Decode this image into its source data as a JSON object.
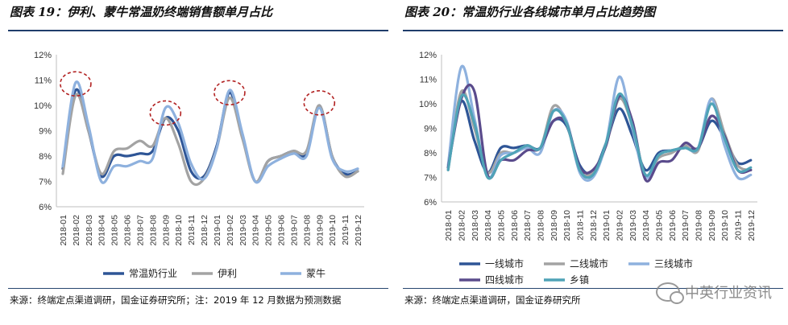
{
  "left": {
    "title": "图表 19：伊利、蒙牛常温奶终端销售额单月占比",
    "source": "来源：终端定点渠道调研，国金证券研究所；注：2019 年 12 月数据为预测数据"
  },
  "right": {
    "title": "图表 20：常温奶行业各线城市单月占比趋势图",
    "source": "来源：终端定点渠道调研，国金证券研究所"
  },
  "watermark": {
    "text": "中英行业资讯"
  },
  "chart_data": [
    {
      "type": "line",
      "title": "图表 19：伊利、蒙牛常温奶终端销售额单月占比",
      "categories": [
        "2018-01",
        "2018-02",
        "2018-03",
        "2018-04",
        "2018-05",
        "2018-06",
        "2018-07",
        "2018-08",
        "2018-09",
        "2018-10",
        "2018-11",
        "2018-12",
        "2019-01",
        "2019-02",
        "2019-03",
        "2019-04",
        "2019-05",
        "2019-06",
        "2019-07",
        "2019-08",
        "2019-09",
        "2019-10",
        "2019-11",
        "2019-12"
      ],
      "y_ticks": [
        "6%",
        "7%",
        "8%",
        "9%",
        "10%",
        "11%",
        "12%"
      ],
      "ylim": [
        6,
        12
      ],
      "legend_position": "bottom",
      "series": [
        {
          "name": "常温奶行业",
          "color": "#2e5596",
          "values": [
            7.5,
            10.6,
            9.0,
            7.2,
            8.0,
            8.0,
            8.1,
            8.2,
            9.5,
            9.0,
            7.4,
            7.2,
            8.4,
            10.5,
            8.8,
            7.0,
            7.8,
            8.0,
            8.2,
            8.1,
            10.0,
            8.0,
            7.3,
            7.4
          ]
        },
        {
          "name": "伊利",
          "color": "#a3a3a3",
          "values": [
            7.3,
            10.4,
            9.0,
            7.3,
            8.2,
            8.3,
            8.6,
            8.4,
            9.5,
            8.5,
            7.0,
            7.1,
            8.3,
            10.3,
            8.7,
            7.0,
            7.8,
            8.0,
            8.2,
            8.2,
            10.0,
            8.0,
            7.2,
            7.4
          ]
        },
        {
          "name": "蒙牛",
          "color": "#8eb1de",
          "values": [
            7.6,
            10.9,
            9.2,
            7.0,
            7.6,
            7.6,
            7.8,
            7.9,
            9.9,
            9.3,
            7.7,
            7.1,
            8.3,
            10.6,
            8.9,
            7.0,
            7.6,
            7.9,
            8.1,
            8.0,
            9.9,
            7.9,
            7.4,
            7.5
          ]
        }
      ],
      "annotations": [
        {
          "type": "dashed-circle",
          "category": "2018-02",
          "value": 10.85
        },
        {
          "type": "dashed-circle",
          "category": "2018-09",
          "value": 9.7
        },
        {
          "type": "dashed-circle",
          "category": "2019-02",
          "value": 10.5
        },
        {
          "type": "dashed-circle",
          "category": "2019-09",
          "value": 10.1
        }
      ]
    },
    {
      "type": "line",
      "title": "图表 20：常温奶行业各线城市单月占比趋势图",
      "categories": [
        "2018-01",
        "2018-02",
        "2018-03",
        "2018-04",
        "2018-05",
        "2018-06",
        "2018-07",
        "2018-08",
        "2018-09",
        "2018-10",
        "2018-11",
        "2018-12",
        "2019-01",
        "2019-02",
        "2019-03",
        "2019-04",
        "2019-05",
        "2019-06",
        "2019-07",
        "2019-08",
        "2019-09",
        "2019-10",
        "2019-11",
        "2019-12"
      ],
      "y_ticks": [
        "6%",
        "7%",
        "8%",
        "9%",
        "10%",
        "11%",
        "12%"
      ],
      "ylim": [
        6,
        12
      ],
      "legend_position": "bottom",
      "series": [
        {
          "name": "一线城市",
          "color": "#2e5596",
          "values": [
            7.4,
            10.1,
            8.5,
            7.2,
            8.2,
            8.2,
            8.3,
            8.2,
            9.3,
            9.1,
            7.5,
            7.2,
            8.4,
            9.8,
            8.7,
            7.3,
            8.0,
            8.1,
            8.2,
            8.2,
            9.3,
            8.6,
            7.6,
            7.7
          ]
        },
        {
          "name": "二线城市",
          "color": "#a3a3a3",
          "values": [
            7.3,
            10.5,
            9.0,
            7.2,
            8.0,
            8.0,
            8.3,
            8.2,
            9.9,
            9.2,
            7.3,
            7.2,
            8.3,
            10.2,
            9.1,
            7.1,
            7.8,
            8.0,
            8.3,
            8.1,
            10.2,
            8.8,
            7.5,
            7.3
          ]
        },
        {
          "name": "三线城市",
          "color": "#8eb1de",
          "values": [
            7.5,
            11.5,
            9.4,
            7.0,
            7.9,
            8.0,
            8.2,
            8.0,
            9.7,
            9.3,
            7.2,
            7.0,
            8.4,
            11.1,
            9.0,
            7.0,
            7.9,
            8.1,
            8.2,
            8.2,
            10.2,
            8.3,
            7.0,
            7.1
          ]
        },
        {
          "name": "四线城市",
          "color": "#5a4b8c",
          "values": [
            7.4,
            10.2,
            10.5,
            7.1,
            7.7,
            7.7,
            8.1,
            8.2,
            9.3,
            9.2,
            7.4,
            7.3,
            8.3,
            10.3,
            9.3,
            6.9,
            7.6,
            7.7,
            8.4,
            8.2,
            9.5,
            8.7,
            7.3,
            7.3
          ]
        },
        {
          "name": "乡镇",
          "color": "#4fa3b7",
          "values": [
            7.3,
            10.3,
            9.2,
            7.0,
            7.7,
            8.0,
            8.3,
            8.2,
            9.7,
            9.2,
            7.3,
            7.1,
            8.4,
            10.4,
            9.1,
            7.1,
            7.9,
            8.1,
            8.2,
            8.2,
            10.0,
            8.6,
            7.3,
            7.4
          ]
        }
      ]
    }
  ]
}
